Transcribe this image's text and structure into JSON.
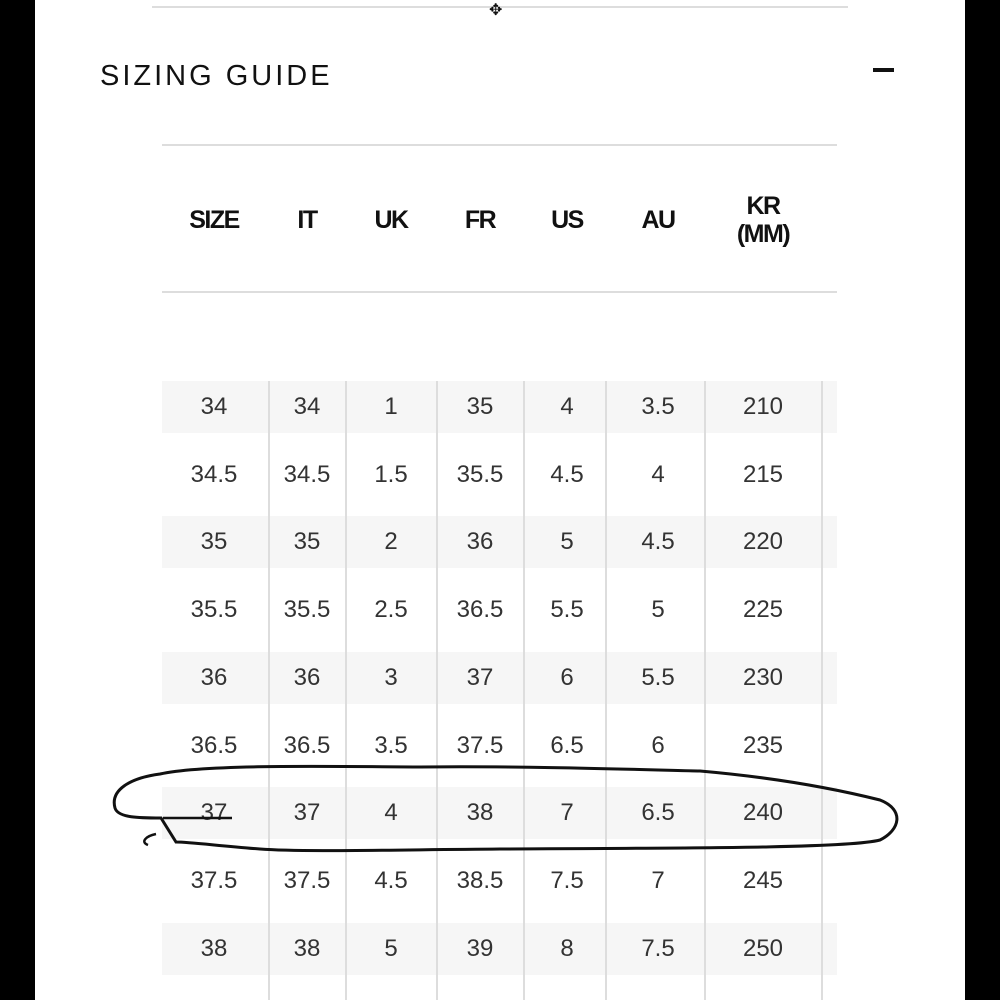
{
  "title": "SIZING GUIDE",
  "collapse_icon": "minus-icon",
  "columns": [
    "SIZE",
    "IT",
    "UK",
    "FR",
    "US",
    "AU",
    "KR (MM)"
  ],
  "rows": [
    [
      "34",
      "34",
      "1",
      "35",
      "4",
      "3.5",
      "210"
    ],
    [
      "34.5",
      "34.5",
      "1.5",
      "35.5",
      "4.5",
      "4",
      "215"
    ],
    [
      "35",
      "35",
      "2",
      "36",
      "5",
      "4.5",
      "220"
    ],
    [
      "35.5",
      "35.5",
      "2.5",
      "36.5",
      "5.5",
      "5",
      "225"
    ],
    [
      "36",
      "36",
      "3",
      "37",
      "6",
      "5.5",
      "230"
    ],
    [
      "36.5",
      "36.5",
      "3.5",
      "37.5",
      "6.5",
      "6",
      "235"
    ],
    [
      "37",
      "37",
      "4",
      "38",
      "7",
      "6.5",
      "240"
    ],
    [
      "37.5",
      "37.5",
      "4.5",
      "38.5",
      "7.5",
      "7",
      "245"
    ],
    [
      "38",
      "38",
      "5",
      "39",
      "8",
      "7.5",
      "250"
    ]
  ],
  "highlighted_row": "37"
}
